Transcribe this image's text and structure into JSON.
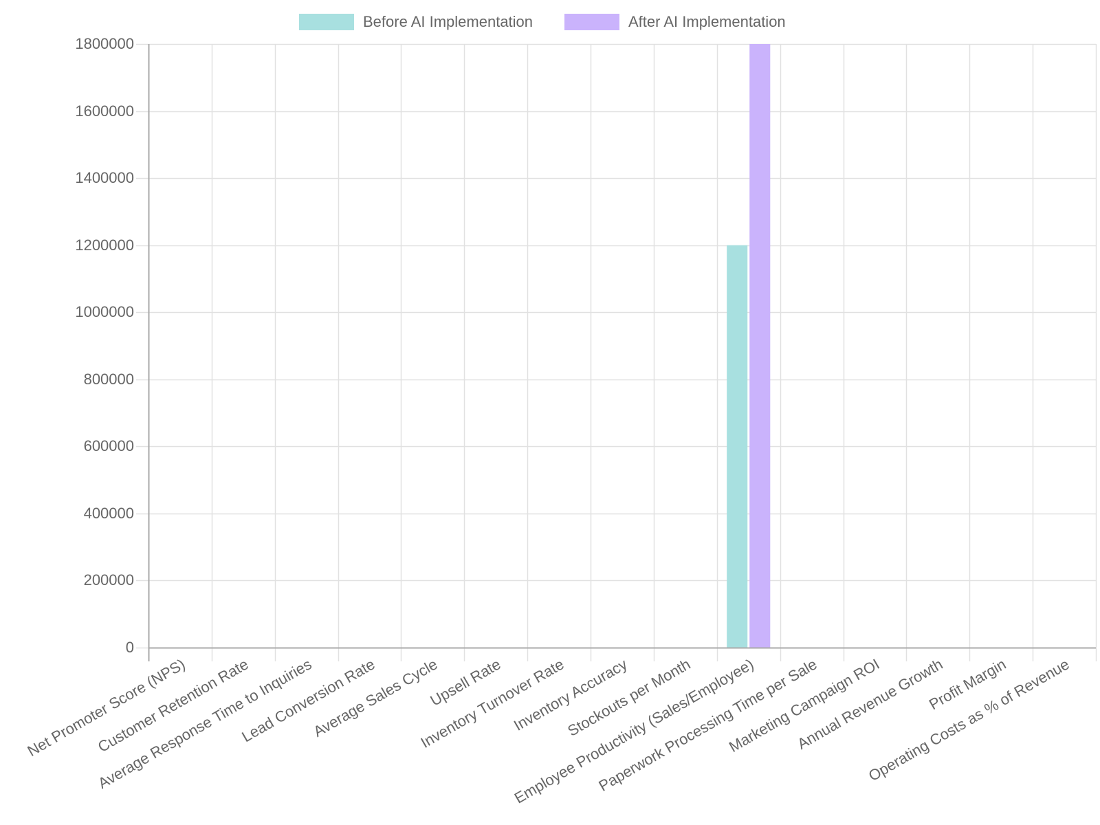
{
  "chart_data": {
    "type": "bar",
    "title": "",
    "xlabel": "",
    "ylabel": "",
    "ylim": [
      0,
      1800000
    ],
    "yticks": [
      0,
      200000,
      400000,
      600000,
      800000,
      1000000,
      1200000,
      1400000,
      1600000,
      1800000
    ],
    "grid": true,
    "legend_position": "top",
    "categories": [
      "Net Promoter Score (NPS)",
      "Customer Retention Rate",
      "Average Response Time to Inquiries",
      "Lead Conversion Rate",
      "Average Sales Cycle",
      "Upsell Rate",
      "Inventory Turnover Rate",
      "Inventory Accuracy",
      "Stockouts per Month",
      "Employee Productivity (Sales/Employee)",
      "Paperwork Processing Time per Sale",
      "Marketing Campaign ROI",
      "Annual Revenue Growth",
      "Profit Margin",
      "Operating Costs as % of Revenue"
    ],
    "series": [
      {
        "name": "Before AI Implementation",
        "color": "#a8e0e0",
        "values": [
          0,
          0,
          0,
          0,
          0,
          0,
          0,
          0,
          0,
          1200000,
          0,
          0,
          0,
          0,
          0
        ]
      },
      {
        "name": "After AI Implementation",
        "color": "#cab3fc",
        "values": [
          0,
          0,
          0,
          0,
          0,
          0,
          0,
          0,
          0,
          1800000,
          0,
          0,
          0,
          0,
          0
        ]
      }
    ]
  },
  "legend": {
    "items": [
      {
        "label": "Before AI Implementation",
        "color": "#a8e0e0"
      },
      {
        "label": "After AI Implementation",
        "color": "#cab3fc"
      }
    ]
  },
  "colors": {
    "grid": "#e1e1e1",
    "axis": "#aaaaaa",
    "text": "#666666"
  }
}
